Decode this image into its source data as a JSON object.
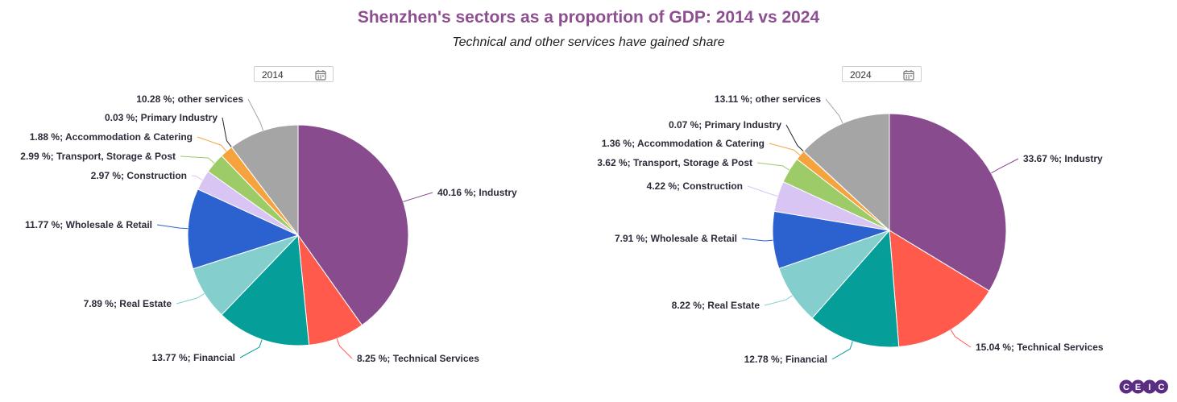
{
  "title": "Shenzhen's sectors as a proportion of GDP: 2014 vs 2024",
  "subtitle": "Technical and other services have gained share",
  "year_pickers": [
    {
      "value": "2014",
      "icon": "calendar-icon"
    },
    {
      "value": "2024",
      "icon": "calendar-icon"
    }
  ],
  "logo": {
    "letters": [
      "C",
      "E",
      "I",
      "C"
    ],
    "color": "#5a2d82"
  },
  "chart_data": [
    {
      "type": "pie",
      "unit": "%",
      "slices": [
        {
          "label": "Industry",
          "value": 40.16,
          "text": "40.16 %; Industry",
          "color": "#884b8e"
        },
        {
          "label": "Technical Services",
          "value": 8.25,
          "text": "8.25 %; Technical Services",
          "color": "#ff5a4b"
        },
        {
          "label": "Financial",
          "value": 13.77,
          "text": "13.77 %; Financial",
          "color": "#069e99"
        },
        {
          "label": "Real Estate",
          "value": 7.89,
          "text": "7.89 %; Real Estate",
          "color": "#84cecd"
        },
        {
          "label": "Wholesale & Retail",
          "value": 11.77,
          "text": "11.77 %; Wholesale & Retail",
          "color": "#2b62d0"
        },
        {
          "label": "Construction",
          "value": 2.97,
          "text": "2.97 %; Construction",
          "color": "#d8c5f3"
        },
        {
          "label": "Transport, Storage & Post",
          "value": 2.99,
          "text": "2.99 %; Transport, Storage & Post",
          "color": "#9dcb68"
        },
        {
          "label": "Accommodation & Catering",
          "value": 1.88,
          "text": "1.88 %; Accommodation & Catering",
          "color": "#f6a23d"
        },
        {
          "label": "Primary Industry",
          "value": 0.03,
          "text": "0.03 %; Primary Industry",
          "color": "#222222"
        },
        {
          "label": "other services",
          "value": 10.28,
          "text": "10.28 %; other services",
          "color": "#a5a5a5"
        }
      ]
    },
    {
      "type": "pie",
      "unit": "%",
      "slices": [
        {
          "label": "Industry",
          "value": 33.67,
          "text": "33.67 %; Industry",
          "color": "#884b8e"
        },
        {
          "label": "Technical Services",
          "value": 15.04,
          "text": "15.04 %; Technical Services",
          "color": "#ff5a4b"
        },
        {
          "label": "Financial",
          "value": 12.78,
          "text": "12.78 %; Financial",
          "color": "#069e99"
        },
        {
          "label": "Real Estate",
          "value": 8.22,
          "text": "8.22 %; Real Estate",
          "color": "#84cecd"
        },
        {
          "label": "Wholesale & Retail",
          "value": 7.91,
          "text": "7.91 %; Wholesale & Retail",
          "color": "#2b62d0"
        },
        {
          "label": "Construction",
          "value": 4.22,
          "text": "4.22 %; Construction",
          "color": "#d8c5f3"
        },
        {
          "label": "Transport, Storage & Post",
          "value": 3.62,
          "text": "3.62 %; Transport, Storage & Post",
          "color": "#9dcb68"
        },
        {
          "label": "Accommodation & Catering",
          "value": 1.36,
          "text": "1.36 %; Accommodation & Catering",
          "color": "#f6a23d"
        },
        {
          "label": "Primary Industry",
          "value": 0.07,
          "text": "0.07 %; Primary Industry",
          "color": "#222222"
        },
        {
          "label": "other services",
          "value": 13.11,
          "text": "13.11 %; other services",
          "color": "#a5a5a5"
        }
      ]
    }
  ]
}
